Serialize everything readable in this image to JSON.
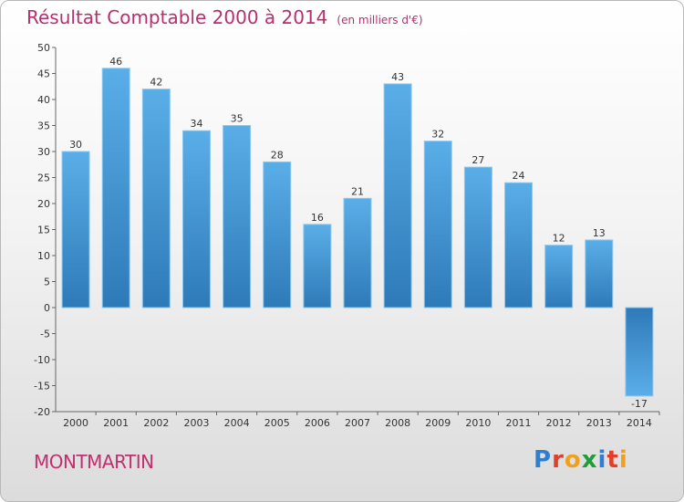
{
  "chart_data": {
    "type": "bar",
    "title": "Résultat Comptable 2000 à 2014",
    "subtitle": "(en milliers d'€)",
    "xlabel": "",
    "ylabel": "",
    "categories": [
      "2000",
      "2001",
      "2002",
      "2003",
      "2004",
      "2005",
      "2006",
      "2007",
      "2008",
      "2009",
      "2010",
      "2011",
      "2012",
      "2013",
      "2014"
    ],
    "values": [
      30,
      46,
      42,
      34,
      35,
      28,
      16,
      21,
      43,
      32,
      27,
      24,
      12,
      13,
      -17
    ],
    "value_labels": [
      "30",
      "46",
      "42",
      "34",
      "35",
      "28",
      "16",
      "21",
      "43",
      "32",
      "27",
      "24",
      "12",
      "13",
      "-17"
    ],
    "ylim": [
      -20,
      50
    ],
    "yticks": [
      50,
      45,
      40,
      35,
      30,
      25,
      20,
      15,
      10,
      5,
      0,
      -5,
      -10,
      -15,
      -20
    ],
    "ytick_labels": [
      "50",
      "45",
      "40",
      "35",
      "30",
      "25",
      "20",
      "15",
      "10",
      "5",
      "0",
      "-5",
      "-10",
      "-15",
      "-20"
    ],
    "grid": false,
    "legend": "none",
    "colors": {
      "bar_light": "#5aaee8",
      "bar_dark": "#2e7ab8",
      "title": "#b5306e"
    }
  },
  "footer": {
    "place": "MONTMARTIN",
    "brand_letters": [
      "P",
      "r",
      "o",
      "x",
      "i",
      "t",
      "i"
    ],
    "brand_colors": [
      "#2f7fd0",
      "#e0402a",
      "#f0a020",
      "#1e9e3a",
      "#2f7fd0",
      "#e0402a",
      "#f0a020"
    ]
  }
}
